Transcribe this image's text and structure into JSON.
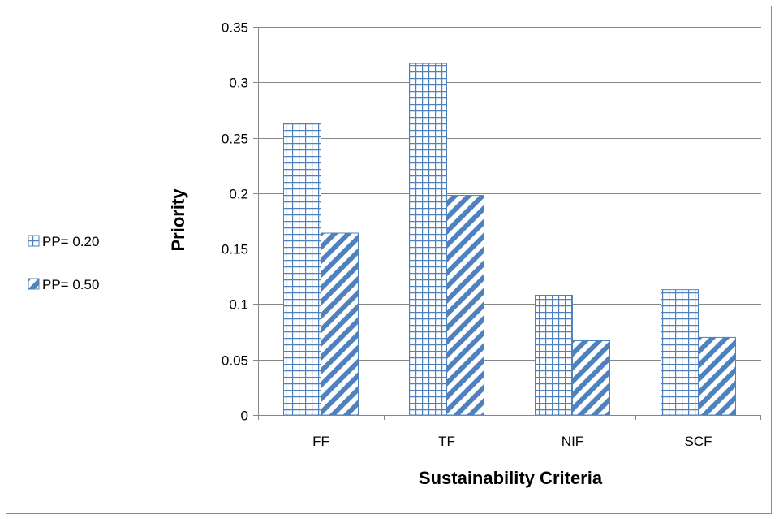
{
  "chart_data": {
    "type": "bar",
    "title": "",
    "xlabel": "Sustainability Criteria",
    "ylabel": "Priority",
    "categories": [
      "FF",
      "TF",
      "NIF",
      "SCF"
    ],
    "series": [
      {
        "name": "PP= 0.20",
        "values": [
          0.263,
          0.317,
          0.108,
          0.113
        ],
        "pattern": "grid",
        "color": "#4f81bd"
      },
      {
        "name": "PP= 0.50",
        "values": [
          0.164,
          0.198,
          0.067,
          0.07
        ],
        "pattern": "diagonal-stripes",
        "color": "#4f81bd"
      }
    ],
    "ylim": [
      0,
      0.35
    ],
    "yticks": [
      0,
      0.05,
      0.1,
      0.15,
      0.2,
      0.25,
      0.3,
      0.35
    ],
    "ytick_labels": [
      "0",
      "0.05",
      "0.1",
      "0.15",
      "0.2",
      "0.25",
      "0.3",
      "0.35"
    ],
    "grid": true,
    "legend_position": "left"
  }
}
